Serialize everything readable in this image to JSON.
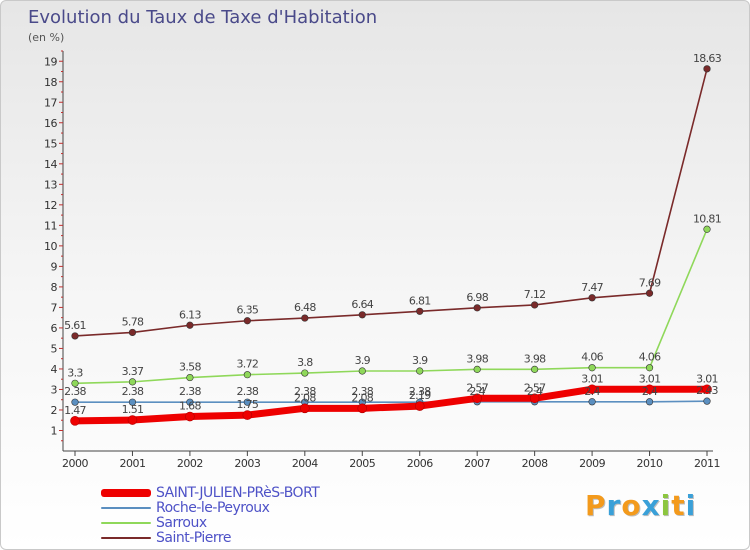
{
  "chart_data": {
    "type": "line",
    "title": "Evolution du Taux de Taxe d'Habitation",
    "subtitle": "(en %)",
    "categories": [
      "2000",
      "2001",
      "2002",
      "2003",
      "2004",
      "2005",
      "2006",
      "2007",
      "2008",
      "2009",
      "2010",
      "2011"
    ],
    "ylim": [
      0,
      19.5
    ],
    "yticks": [
      "1",
      "2",
      "3",
      "4",
      "5",
      "6",
      "7",
      "8",
      "9",
      "10",
      "11",
      "12",
      "13",
      "14",
      "15",
      "16",
      "17",
      "18",
      "19"
    ],
    "series": [
      {
        "name": "SAINT-JULIEN-PRèS-BORT",
        "color": "#ee0000",
        "values": [
          1.47,
          1.51,
          1.68,
          1.75,
          2.08,
          2.08,
          2.19,
          2.57,
          2.57,
          3.01,
          3.01,
          3.01
        ],
        "labels": [
          "1.47",
          "1.51",
          "1.68",
          "1.75",
          "2.08",
          "2.08",
          "2.19",
          "2.57",
          "2.57",
          "3.01",
          "3.01",
          "3.01"
        ]
      },
      {
        "name": "Roche-le-Peyroux",
        "color": "#5b8fc0",
        "values": [
          2.38,
          2.38,
          2.38,
          2.38,
          2.38,
          2.38,
          2.38,
          2.4,
          2.4,
          2.4,
          2.4,
          2.43
        ],
        "labels": [
          "2.38",
          "2.38",
          "2.38",
          "2.38",
          "2.38",
          "2.38",
          "2.38",
          "2.4",
          "2.4",
          "2.4",
          "2.4",
          "2.43"
        ]
      },
      {
        "name": "Sarroux",
        "color": "#8fd85a",
        "values": [
          3.3,
          3.37,
          3.58,
          3.72,
          3.8,
          3.9,
          3.9,
          3.98,
          3.98,
          4.06,
          4.06,
          10.81
        ],
        "labels": [
          "3.3",
          "3.37",
          "3.58",
          "3.72",
          "3.8",
          "3.9",
          "3.9",
          "3.98",
          "3.98",
          "4.06",
          "4.06",
          "10.81"
        ]
      },
      {
        "name": "Saint-Pierre",
        "color": "#7a2a2a",
        "values": [
          5.61,
          5.78,
          6.13,
          6.35,
          6.48,
          6.64,
          6.81,
          6.98,
          7.12,
          7.47,
          7.69,
          18.63
        ],
        "labels": [
          "5.61",
          "5.78",
          "6.13",
          "6.35",
          "6.48",
          "6.64",
          "6.81",
          "6.98",
          "7.12",
          "7.47",
          "7.69",
          "18.63"
        ]
      }
    ],
    "grid": false,
    "legend": "bottom-left"
  },
  "logo": {
    "text": "Proxiti",
    "letters": [
      "P",
      "r",
      "o",
      "x",
      "i",
      "t",
      "i"
    ],
    "colors": [
      "#f39a1c",
      "#3aa0d8",
      "#f39a1c",
      "#3aa0d8",
      "#8cc63f",
      "#f39a1c",
      "#3aa0d8"
    ]
  }
}
